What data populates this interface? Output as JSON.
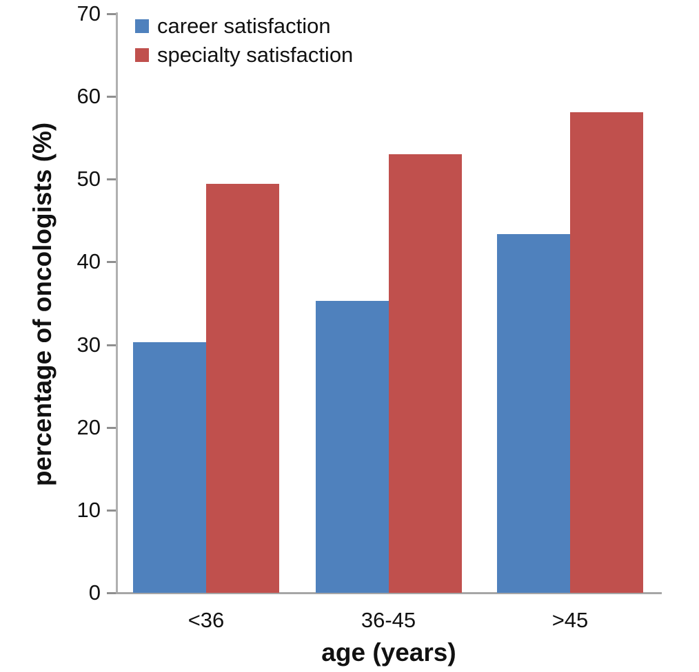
{
  "chart_data": {
    "type": "bar",
    "title": "",
    "categories": [
      "<36",
      "36-45",
      ">45"
    ],
    "series": [
      {
        "name": "career satisfaction",
        "color": "#4f81bd",
        "values": [
          30.3,
          35.3,
          43.4
        ]
      },
      {
        "name": "specialty satisfaction",
        "color": "#c0504d",
        "values": [
          49.4,
          53.0,
          58.1
        ]
      }
    ],
    "xlabel": "age (years)",
    "ylabel": "percentage of oncologists (%)",
    "ylim": [
      0,
      70
    ],
    "ytick_step": 10,
    "ytick_labels": [
      "0",
      "10",
      "20",
      "30",
      "40",
      "50",
      "60",
      "70"
    ],
    "legend_position": "top-left-inside",
    "grid": "off",
    "colors": {
      "background": "#ffffff",
      "text": "#111111",
      "axis_line": "#b0b0b0",
      "baseline": "#a6a6a6",
      "tick": "#8f8f8f"
    }
  }
}
